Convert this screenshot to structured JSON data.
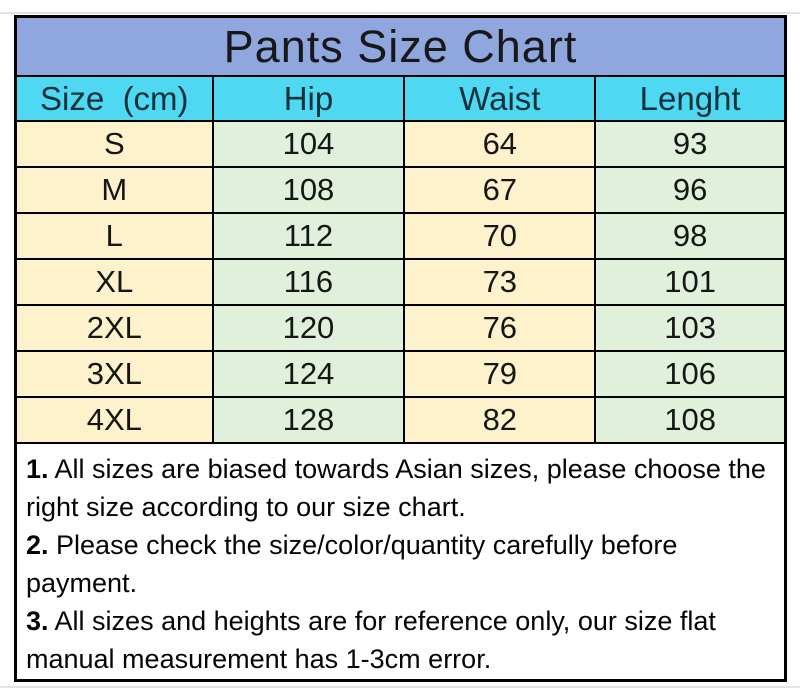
{
  "title": "Pants Size Chart",
  "table": {
    "headers": [
      "Size  (cm)",
      "Hip",
      "Waist",
      "Lenght"
    ],
    "rows": [
      [
        "S",
        "104",
        "64",
        "93"
      ],
      [
        "M",
        "108",
        "67",
        "96"
      ],
      [
        "L",
        "112",
        "70",
        "98"
      ],
      [
        "XL",
        "116",
        "73",
        "101"
      ],
      [
        "2XL",
        "120",
        "76",
        "103"
      ],
      [
        "3XL",
        "124",
        "79",
        "106"
      ],
      [
        "4XL",
        "128",
        "82",
        "108"
      ]
    ]
  },
  "notes": [
    {
      "num": "1.",
      "text": " All sizes are biased towards Asian sizes, please choose the right size according to our size chart."
    },
    {
      "num": "2.",
      "text": " Please check the size/color/quantity carefully before payment."
    },
    {
      "num": "3.",
      "text": " All sizes and heights are for reference only, our size flat manual measurement has 1-3cm error."
    }
  ],
  "colors": {
    "title_bg": "#8FA6DF",
    "header_bg": "#4ED8F1",
    "cell_cream": "#FDF2CB",
    "cell_green": "#E0F0DA",
    "border": "#000000"
  }
}
